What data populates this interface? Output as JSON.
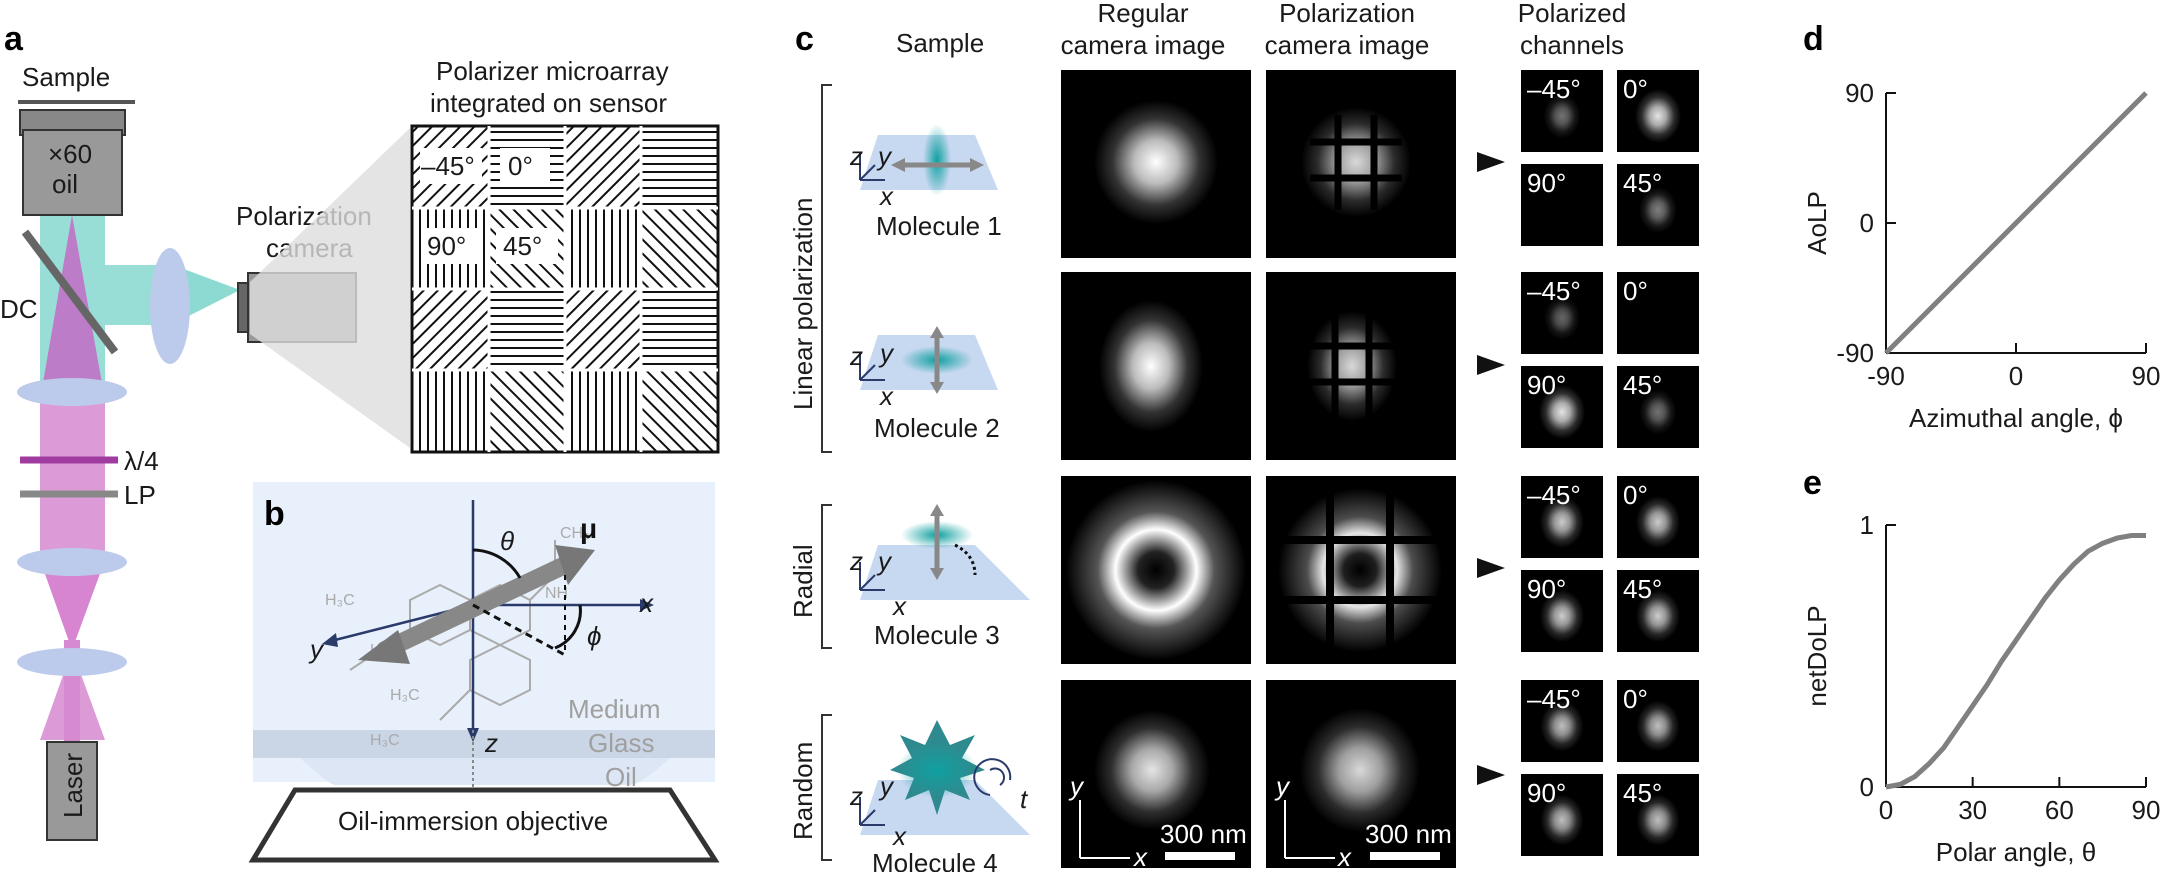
{
  "panels": {
    "a": {
      "letter": "a",
      "sample": "Sample",
      "objective": [
        "×60",
        "oil"
      ],
      "dc": "DC",
      "camera": [
        "Polarization",
        "camera"
      ],
      "array_title": [
        "Polarizer microarray",
        "integrated on sensor"
      ],
      "array_labels": [
        "–45°",
        "0°",
        "90°",
        "45°"
      ],
      "quarter_wave": "λ/4",
      "lp": "LP",
      "laser": "Laser"
    },
    "b": {
      "letter": "b",
      "theta": "θ",
      "mu": "μ",
      "phi": "ϕ",
      "x": "x",
      "y": "y",
      "z": "z",
      "layers": [
        "Medium",
        "Glass",
        "Oil"
      ],
      "objective": "Oil-immersion objective"
    },
    "c": {
      "letter": "c",
      "headers": [
        "Sample",
        "Regular\ncamera image",
        "Polarization\ncamera image",
        "Polarized\nchannels"
      ],
      "groups": [
        "Linear polarization",
        "Radial",
        "Random"
      ],
      "molecules": [
        "Molecule 1",
        "Molecule 2",
        "Molecule 3",
        "Molecule 4"
      ],
      "channels": [
        "–45°",
        "0°",
        "90°",
        "45°"
      ],
      "scale": "300 nm",
      "t": "t"
    }
  },
  "chart_data": [
    {
      "panel": "d",
      "type": "line",
      "xlabel": "Azimuthal angle, ϕ",
      "ylabel": "AoLP",
      "xlim": [
        -90,
        90
      ],
      "ylim": [
        -90,
        90
      ],
      "xticks": [
        -90,
        0,
        90
      ],
      "yticks": [
        -90,
        0,
        90
      ],
      "series": [
        {
          "x": [
            -90,
            90
          ],
          "y": [
            -90,
            90
          ]
        }
      ]
    },
    {
      "panel": "e",
      "type": "line",
      "xlabel": "Polar angle, θ",
      "ylabel": "netDoLP",
      "xlim": [
        0,
        90
      ],
      "ylim": [
        0,
        1
      ],
      "xticks": [
        0,
        30,
        60,
        90
      ],
      "yticks": [
        0,
        1
      ],
      "series": [
        {
          "x": [
            0,
            5,
            10,
            15,
            20,
            25,
            30,
            35,
            40,
            45,
            50,
            55,
            60,
            65,
            70,
            75,
            80,
            85,
            90
          ],
          "y": [
            0,
            0.01,
            0.04,
            0.09,
            0.15,
            0.23,
            0.31,
            0.39,
            0.48,
            0.56,
            0.64,
            0.72,
            0.79,
            0.85,
            0.9,
            0.93,
            0.95,
            0.96,
            0.96
          ]
        }
      ]
    }
  ]
}
